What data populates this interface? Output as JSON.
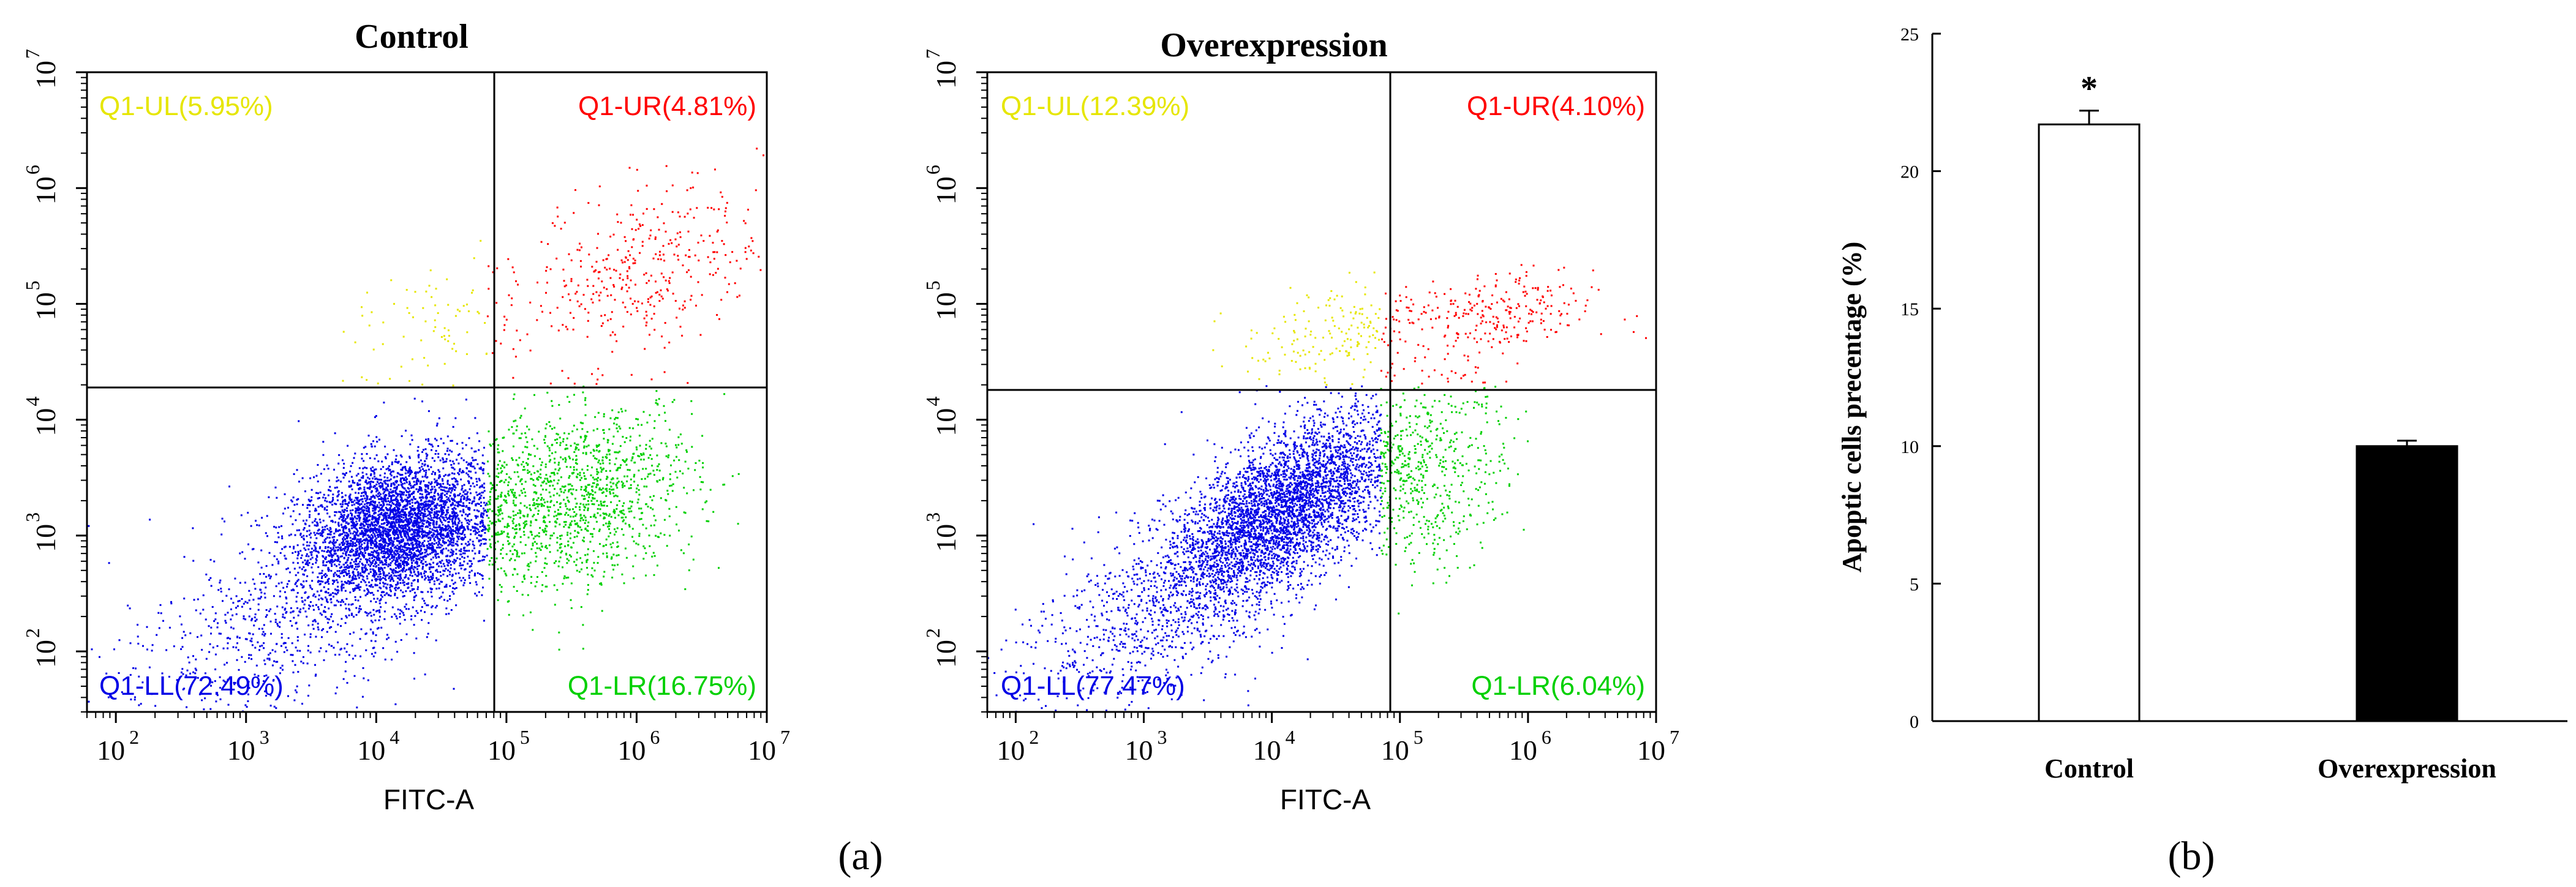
{
  "colors": {
    "ul": "#e6e600",
    "ur": "#ff0000",
    "ll": "#0000e6",
    "lr": "#00d000",
    "bar_outline": "#000000",
    "control_fill": "#ffffff",
    "overexpression_fill": "#000000"
  },
  "panel_a": {
    "label": "(a)",
    "plots": [
      {
        "title": "Control",
        "xlabel": "FITC-A",
        "q_ul": "Q1-UL(5.95%)",
        "q_ur": "Q1-UR(4.81%)",
        "q_ll": "Q1-LL(72.49%)",
        "q_lr": "Q1-LR(16.75%)"
      },
      {
        "title": "Overexpression",
        "xlabel": "FITC-A",
        "q_ul": "Q1-UL(12.39%)",
        "q_ur": "Q1-UR(4.10%)",
        "q_ll": "Q1-LL(77.47%)",
        "q_lr": "Q1-LR(6.04%)"
      }
    ],
    "x_tick_exponents": [
      "2",
      "3",
      "4",
      "5",
      "6",
      "7"
    ],
    "y_tick_exponents": [
      "2",
      "3",
      "4",
      "5",
      "6",
      "7"
    ],
    "tick_base": "10"
  },
  "chart_data": [
    {
      "type": "scatter",
      "title": "Control",
      "xlabel": "FITC-A",
      "ylabel": "",
      "x_scale": "log10",
      "y_scale": "log10",
      "xlim": [
        60,
        10000000
      ],
      "ylim": [
        30,
        10000000
      ],
      "gate_x": 70000,
      "gate_y": 20000,
      "quadrants": [
        {
          "name": "Q1-UL",
          "percent": 5.95
        },
        {
          "name": "Q1-UR",
          "percent": 4.81
        },
        {
          "name": "Q1-LL",
          "percent": 72.49
        },
        {
          "name": "Q1-LR",
          "percent": 16.75
        }
      ]
    },
    {
      "type": "scatter",
      "title": "Overexpression",
      "xlabel": "FITC-A",
      "ylabel": "",
      "x_scale": "log10",
      "y_scale": "log10",
      "xlim": [
        60,
        10000000
      ],
      "ylim": [
        30,
        10000000
      ],
      "gate_x": 70000,
      "gate_y": 20000,
      "quadrants": [
        {
          "name": "Q1-UL",
          "percent": 12.39
        },
        {
          "name": "Q1-UR",
          "percent": 4.1
        },
        {
          "name": "Q1-LL",
          "percent": 77.47
        },
        {
          "name": "Q1-LR",
          "percent": 6.04
        }
      ]
    },
    {
      "type": "bar",
      "label": "(b)",
      "categories": [
        "Control",
        "Overexpression"
      ],
      "values": [
        21.7,
        10.0
      ],
      "errors": [
        0.5,
        0.2
      ],
      "significance": [
        "*",
        ""
      ],
      "ylabel": "Apoptic cells precentage  (%)",
      "xlabel": "",
      "ylim": [
        0,
        25
      ],
      "yticks": [
        "0",
        "5",
        "10",
        "15",
        "20",
        "25"
      ]
    }
  ]
}
